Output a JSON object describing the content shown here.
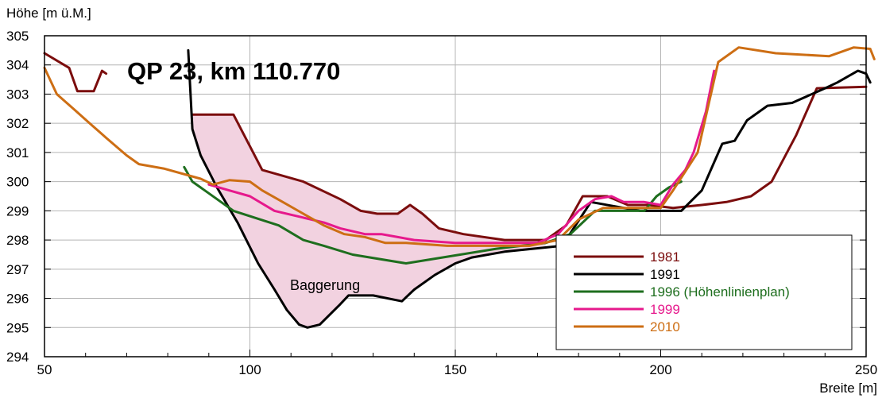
{
  "chart_data": {
    "type": "line",
    "title": "QP 23, km 110.770",
    "xlabel": "Breite [m]",
    "ylabel": "Höhe [m ü.M.]",
    "xlim": [
      50,
      250
    ],
    "ylim": [
      294,
      305
    ],
    "xticks": [
      "50",
      "100",
      "150",
      "200",
      "250"
    ],
    "yticks": [
      "294",
      "295",
      "296",
      "297",
      "298",
      "299",
      "300",
      "301",
      "302",
      "303",
      "304",
      "305"
    ],
    "grid": true,
    "legend_position": "bottom-right",
    "annotation": "Baggerung",
    "series": [
      {
        "name": "1981",
        "color": "#7b0d0d",
        "points": [
          [
            50,
            304.4
          ],
          [
            56,
            303.9
          ],
          [
            58,
            303.1
          ],
          [
            62,
            303.1
          ],
          [
            64,
            303.8
          ],
          [
            65,
            303.7
          ],
          [
            null,
            null
          ],
          [
            86,
            302.3
          ],
          [
            96,
            302.3
          ],
          [
            103,
            300.4
          ],
          [
            113,
            300.0
          ],
          [
            122,
            299.4
          ],
          [
            127,
            299.0
          ],
          [
            131,
            298.9
          ],
          [
            136,
            298.9
          ],
          [
            139,
            299.2
          ],
          [
            142,
            298.9
          ],
          [
            146,
            298.4
          ],
          [
            152,
            298.2
          ],
          [
            162,
            298.0
          ],
          [
            172,
            298.0
          ],
          [
            177,
            298.5
          ],
          [
            181,
            299.5
          ],
          [
            187,
            299.5
          ],
          [
            192,
            299.2
          ],
          [
            197,
            299.2
          ],
          [
            203,
            299.1
          ],
          [
            210,
            299.2
          ],
          [
            216,
            299.3
          ],
          [
            222,
            299.5
          ],
          [
            227,
            300.0
          ],
          [
            233,
            301.6
          ],
          [
            238,
            303.2
          ],
          [
            250,
            303.25
          ]
        ]
      },
      {
        "name": "1991",
        "color": "#000000",
        "points": [
          [
            85,
            304.5
          ],
          [
            86,
            301.8
          ],
          [
            88,
            300.9
          ],
          [
            92,
            299.8
          ],
          [
            97,
            298.6
          ],
          [
            102,
            297.2
          ],
          [
            106,
            296.3
          ],
          [
            109,
            295.6
          ],
          [
            112,
            295.1
          ],
          [
            114,
            295.0
          ],
          [
            117,
            295.1
          ],
          [
            122,
            295.8
          ],
          [
            124,
            296.1
          ],
          [
            130,
            296.1
          ],
          [
            137,
            295.9
          ],
          [
            140,
            296.3
          ],
          [
            145,
            296.8
          ],
          [
            150,
            297.2
          ],
          [
            154,
            297.4
          ],
          [
            162,
            297.6
          ],
          [
            176,
            297.8
          ],
          [
            183,
            299.3
          ],
          [
            195,
            299.0
          ],
          [
            205,
            299.0
          ],
          [
            210,
            299.7
          ],
          [
            215,
            301.3
          ],
          [
            218,
            301.4
          ],
          [
            221,
            302.1
          ],
          [
            226,
            302.6
          ],
          [
            232,
            302.7
          ],
          [
            240,
            303.2
          ],
          [
            243,
            303.4
          ],
          [
            248,
            303.8
          ],
          [
            250,
            303.7
          ],
          [
            251,
            303.4
          ]
        ]
      },
      {
        "name": "1996 (Höhenlinienplan)",
        "color": "#1e6e1e",
        "points": [
          [
            84,
            300.5
          ],
          [
            86,
            300.0
          ],
          [
            90,
            299.6
          ],
          [
            96,
            299.0
          ],
          [
            107,
            298.5
          ],
          [
            113,
            298.0
          ],
          [
            118,
            297.8
          ],
          [
            125,
            297.5
          ],
          [
            138,
            297.2
          ],
          [
            160,
            297.7
          ],
          [
            172,
            297.9
          ],
          [
            178,
            298.2
          ],
          [
            184,
            299.0
          ],
          [
            196,
            299.0
          ],
          [
            199,
            299.5
          ],
          [
            202,
            299.8
          ],
          [
            205,
            300.0
          ]
        ]
      },
      {
        "name": "1999",
        "color": "#e6198c",
        "points": [
          [
            90,
            299.9
          ],
          [
            95,
            299.7
          ],
          [
            100,
            299.5
          ],
          [
            106,
            299.0
          ],
          [
            112,
            298.8
          ],
          [
            118,
            298.6
          ],
          [
            122,
            298.4
          ],
          [
            128,
            298.2
          ],
          [
            132,
            298.2
          ],
          [
            136,
            298.1
          ],
          [
            140,
            298.0
          ],
          [
            150,
            297.9
          ],
          [
            162,
            297.9
          ],
          [
            170,
            297.9
          ],
          [
            175,
            298.2
          ],
          [
            180,
            299.0
          ],
          [
            184,
            299.4
          ],
          [
            188,
            299.5
          ],
          [
            191,
            299.3
          ],
          [
            196,
            299.3
          ],
          [
            200,
            299.2
          ],
          [
            203,
            299.9
          ],
          [
            206,
            300.4
          ],
          [
            208,
            301.0
          ],
          [
            211,
            302.4
          ],
          [
            213,
            303.8
          ]
        ]
      },
      {
        "name": "2010",
        "color": "#cd6e14",
        "points": [
          [
            50,
            303.9
          ],
          [
            53,
            303.0
          ],
          [
            57,
            302.5
          ],
          [
            61,
            302.0
          ],
          [
            65,
            301.5
          ],
          [
            70,
            300.9
          ],
          [
            73,
            300.6
          ],
          [
            79,
            300.45
          ],
          [
            88,
            300.1
          ],
          [
            91,
            299.9
          ],
          [
            95,
            300.05
          ],
          [
            100,
            300.0
          ],
          [
            103,
            299.7
          ],
          [
            108,
            299.3
          ],
          [
            113,
            298.9
          ],
          [
            118,
            298.5
          ],
          [
            123,
            298.2
          ],
          [
            128,
            298.1
          ],
          [
            133,
            297.9
          ],
          [
            138,
            297.9
          ],
          [
            148,
            297.8
          ],
          [
            158,
            297.8
          ],
          [
            168,
            297.8
          ],
          [
            175,
            298.0
          ],
          [
            180,
            298.7
          ],
          [
            186,
            299.1
          ],
          [
            190,
            299.1
          ],
          [
            200,
            299.1
          ],
          [
            203,
            299.7
          ],
          [
            209,
            301.0
          ],
          [
            214,
            304.1
          ],
          [
            219,
            304.6
          ],
          [
            228,
            304.4
          ],
          [
            241,
            304.3
          ],
          [
            247,
            304.6
          ],
          [
            251,
            304.55
          ],
          [
            252,
            304.2
          ]
        ]
      }
    ],
    "fill_region": {
      "color": "#f2d2e0",
      "upper": [
        [
          86,
          302.3
        ],
        [
          96,
          302.3
        ],
        [
          103,
          300.4
        ],
        [
          113,
          300.0
        ],
        [
          122,
          299.4
        ],
        [
          127,
          299.0
        ],
        [
          131,
          298.9
        ],
        [
          136,
          298.9
        ],
        [
          139,
          299.2
        ],
        [
          142,
          298.9
        ],
        [
          146,
          298.4
        ],
        [
          152,
          298.2
        ],
        [
          162,
          298.0
        ],
        [
          172,
          298.0
        ]
      ],
      "lower": [
        [
          172,
          297.8
        ],
        [
          162,
          297.6
        ],
        [
          154,
          297.4
        ],
        [
          150,
          297.2
        ],
        [
          145,
          296.8
        ],
        [
          140,
          296.3
        ],
        [
          137,
          295.9
        ],
        [
          130,
          296.1
        ],
        [
          124,
          296.1
        ],
        [
          122,
          295.8
        ],
        [
          117,
          295.1
        ],
        [
          114,
          295.0
        ],
        [
          112,
          295.1
        ],
        [
          109,
          295.6
        ],
        [
          106,
          296.3
        ],
        [
          102,
          297.2
        ],
        [
          97,
          298.6
        ],
        [
          92,
          299.8
        ],
        [
          88,
          300.9
        ],
        [
          86,
          301.8
        ]
      ]
    }
  }
}
